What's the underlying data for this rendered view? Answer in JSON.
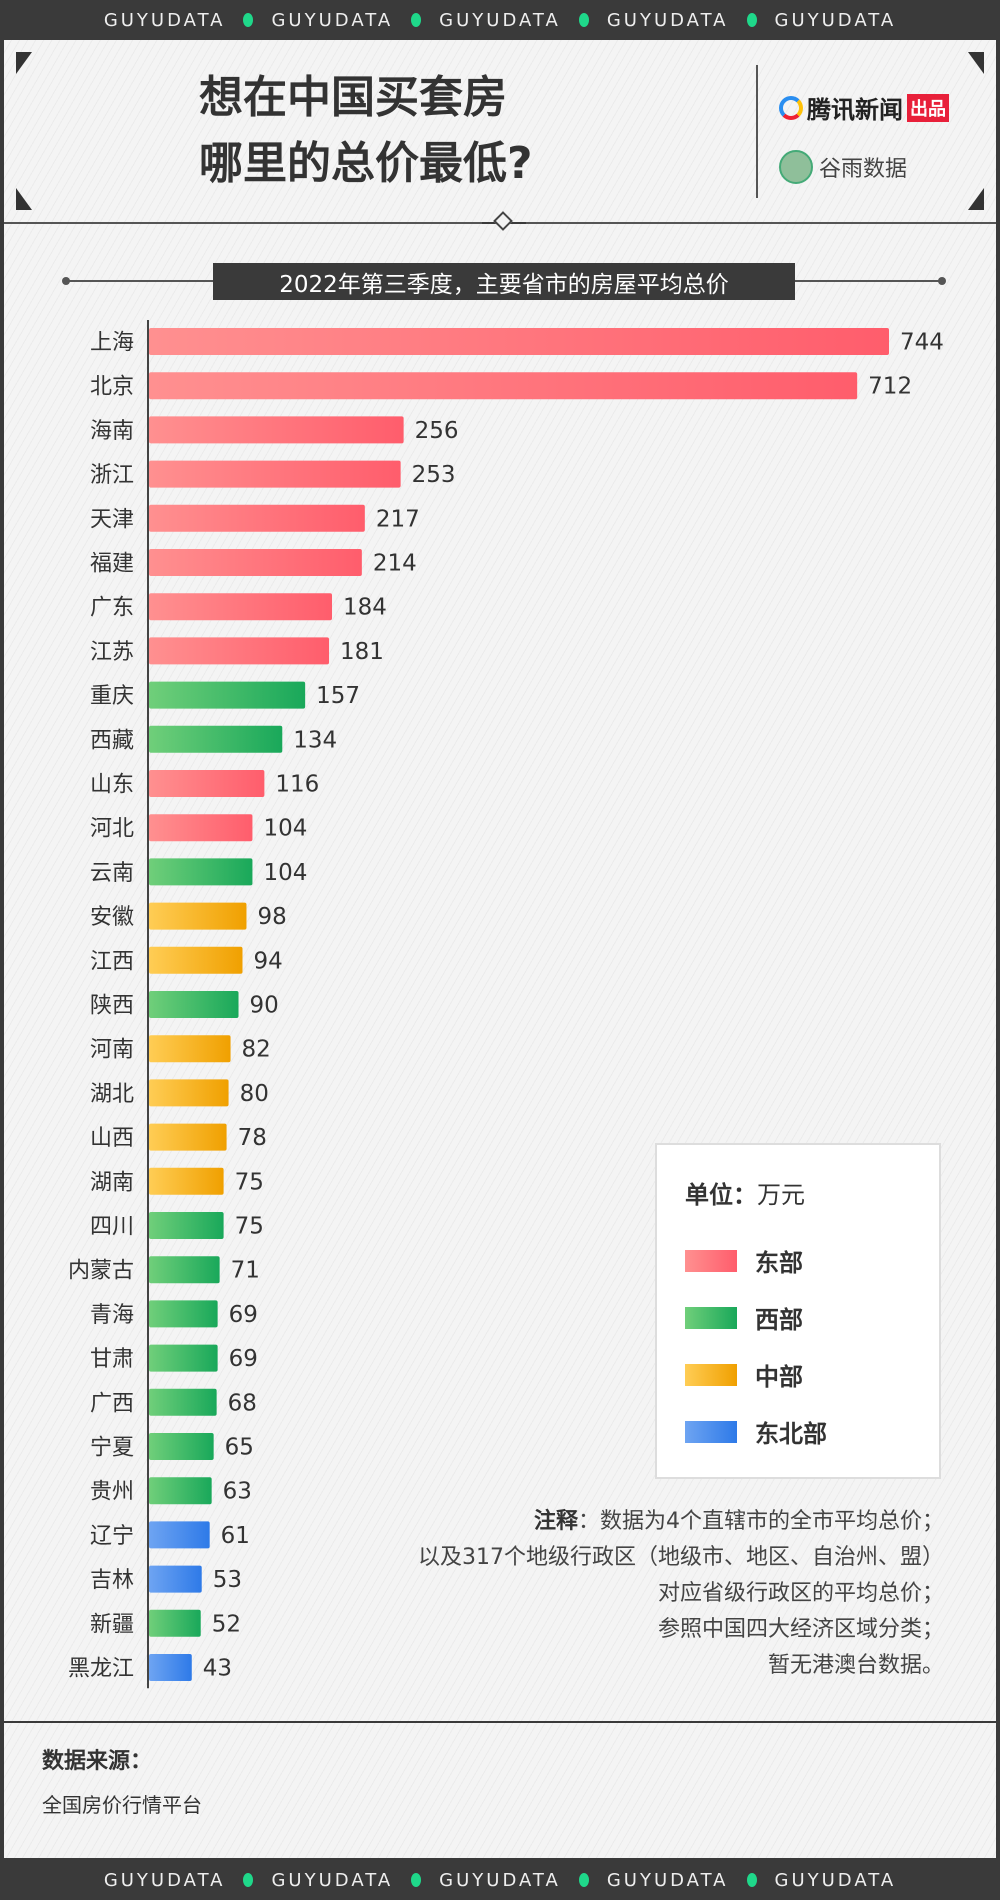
{
  "band_text": "GUYUDATA",
  "header": {
    "title_line1": "想在中国买套房",
    "title_line2": "哪里的总价最低?",
    "logo1": "腾讯新闻",
    "logo1_tag": "出品",
    "logo2": "谷雨数据"
  },
  "colors": {
    "east": [
      "#ff9090",
      "#ff5d6c"
    ],
    "west": [
      "#70cf7a",
      "#19a85a"
    ],
    "central": [
      "#ffcd55",
      "#f0a000"
    ],
    "northeast": [
      "#6ea4f2",
      "#2e7ae8"
    ]
  },
  "chart_data": {
    "type": "bar",
    "orientation": "horizontal",
    "title": "2022年第三季度，主要省市的房屋平均总价",
    "categories": [
      "上海",
      "北京",
      "海南",
      "浙江",
      "天津",
      "福建",
      "广东",
      "江苏",
      "重庆",
      "西藏",
      "山东",
      "河北",
      "云南",
      "安徽",
      "江西",
      "陕西",
      "河南",
      "湖北",
      "山西",
      "湖南",
      "四川",
      "内蒙古",
      "青海",
      "甘肃",
      "广西",
      "宁夏",
      "贵州",
      "辽宁",
      "吉林",
      "新疆",
      "黑龙江"
    ],
    "values": [
      744,
      712,
      256,
      253,
      217,
      214,
      184,
      181,
      157,
      134,
      116,
      104,
      104,
      98,
      94,
      90,
      82,
      80,
      78,
      75,
      75,
      71,
      69,
      69,
      68,
      65,
      63,
      61,
      53,
      52,
      43
    ],
    "region": [
      "east",
      "east",
      "east",
      "east",
      "east",
      "east",
      "east",
      "east",
      "west",
      "west",
      "east",
      "east",
      "west",
      "central",
      "central",
      "west",
      "central",
      "central",
      "central",
      "central",
      "west",
      "west",
      "west",
      "west",
      "west",
      "west",
      "west",
      "northeast",
      "northeast",
      "west",
      "northeast"
    ],
    "legend": {
      "unit_label": "单位：",
      "unit": "万元",
      "items": [
        {
          "key": "east",
          "name": "东部"
        },
        {
          "key": "west",
          "name": "西部"
        },
        {
          "key": "central",
          "name": "中部"
        },
        {
          "key": "northeast",
          "name": "东北部"
        }
      ]
    }
  },
  "note": {
    "label": "注释",
    "lines": [
      "：数据为4个直辖市的全市平均总价；",
      "以及317个地级行政区（地级市、地区、自治州、盟）",
      "对应省级行政区的平均总价；",
      "参照中国四大经济区域分类；",
      "暂无港澳台数据。"
    ]
  },
  "source": {
    "heading": "数据来源：",
    "text": "全国房价行情平台"
  }
}
